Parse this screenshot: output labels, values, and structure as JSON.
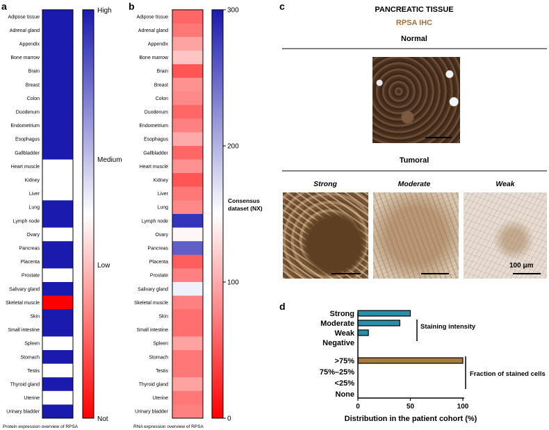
{
  "panels": {
    "a": "a",
    "b": "b",
    "c": "c",
    "d": "d"
  },
  "tissues": [
    "Adipose tissue",
    "Adrenal gland",
    "Appendix",
    "Bone marrow",
    "Brain",
    "Breast",
    "Colon",
    "Duodenum",
    "Endometrium",
    "Esophagus",
    "Gallbladder",
    "Heart muscle",
    "Kidney",
    "Liver",
    "Lung",
    "Lymph node",
    "Ovary",
    "Pancreas",
    "Placenta",
    "Prostate",
    "Salivary gland",
    "Skeletal muscle",
    "Skin",
    "Small intestine",
    "Spleen",
    "Stomach",
    "Testis",
    "Thyroid gland",
    "Uterine",
    "Urinary bladder"
  ],
  "chart_data": [
    {
      "type": "heatmap",
      "panel": "a",
      "title": "Protein expression overview of RPSA",
      "categories_ref": "tissues",
      "levels": [
        "High",
        "Medium",
        "Low",
        "Not"
      ],
      "values": [
        "High",
        "High",
        "High",
        "High",
        "High",
        "High",
        "High",
        "High",
        "High",
        "High",
        "High",
        "Medium",
        "Medium",
        "Medium",
        "High",
        "High",
        "Medium",
        "High",
        "High",
        "Medium",
        "High",
        "Not",
        "High",
        "High",
        "Medium",
        "High",
        "Medium",
        "High",
        "Medium",
        "High"
      ],
      "colorbar_labels": [
        "High",
        "Medium",
        "Low",
        "Not"
      ],
      "colors": {
        "high": "#1a1aaf",
        "mid": "#ffffff",
        "low": "#ff0000"
      }
    },
    {
      "type": "heatmap",
      "panel": "b",
      "title": "RNA expression overview of RPSA",
      "categories_ref": "tissues",
      "unit": "Consensus dataset (NX)",
      "values": [
        60,
        70,
        95,
        115,
        50,
        85,
        80,
        60,
        75,
        100,
        60,
        85,
        50,
        70,
        80,
        282,
        145,
        255,
        55,
        75,
        160,
        75,
        65,
        65,
        95,
        70,
        70,
        95,
        70,
        75
      ],
      "range": [
        0,
        300
      ],
      "colorbar_ticks": [
        0,
        100,
        200,
        300
      ],
      "colorbar_label_line1": "Consensus",
      "colorbar_label_line2": "dataset (NX)"
    },
    {
      "type": "bar",
      "orientation": "horizontal",
      "panel": "d",
      "categories": [
        "Strong",
        "Moderate",
        "Weak",
        "Negative",
        ">75%",
        "75%–25%",
        "<25%",
        "None"
      ],
      "values": [
        50,
        40,
        10,
        0,
        100,
        0,
        0,
        0
      ],
      "bar_colors": [
        "#2a8ea8",
        "#2a8ea8",
        "#2a8ea8",
        "#2a8ea8",
        "#a87a3c",
        "#a87a3c",
        "#a87a3c",
        "#a87a3c"
      ],
      "xlim": [
        0,
        100
      ],
      "xticks": [
        0,
        50,
        100
      ],
      "xlabel": "Distribution in the patient cohort (%)",
      "group_labels": [
        "Staining intensity",
        "Fraction of stained cells"
      ]
    }
  ],
  "panel_c": {
    "title": "PANCREATIC TISSUE",
    "subtitle": "RPSA IHC",
    "subtitle_color": "#a0703c",
    "normal_label": "Normal",
    "tumoral_label": "Tumoral",
    "grades": [
      "Strong",
      "Moderate",
      "Weak"
    ],
    "scale_label": "100 μm"
  }
}
